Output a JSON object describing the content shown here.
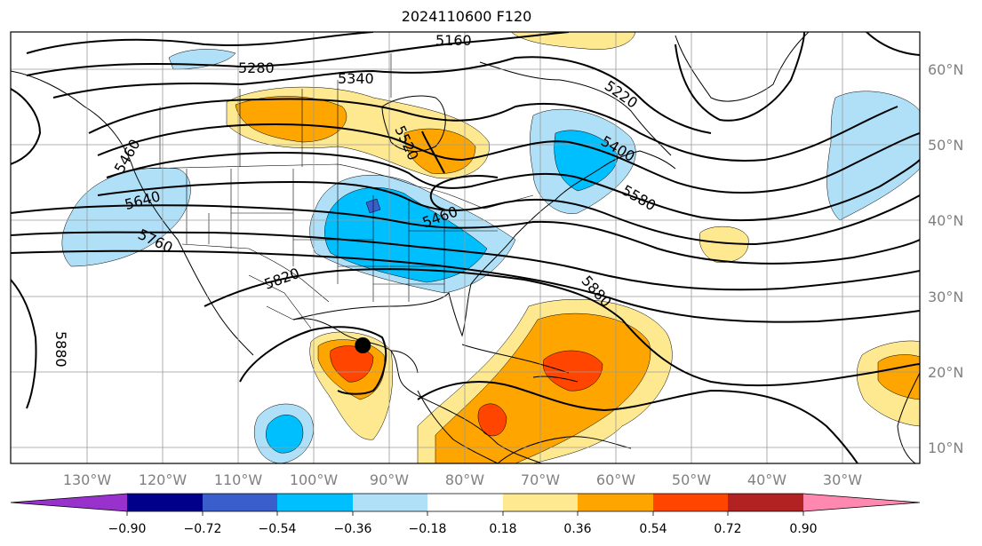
{
  "title": "2024110600 F120",
  "map": {
    "lon_labels": [
      "130°W",
      "120°W",
      "110°W",
      "100°W",
      "90°W",
      "80°W",
      "70°W",
      "60°W",
      "50°W",
      "40°W",
      "30°W"
    ],
    "lat_labels": [
      "60°N",
      "50°N",
      "40°N",
      "30°N",
      "20°N",
      "10°N"
    ],
    "contour_labels": [
      "5160",
      "5280",
      "5340",
      "5220",
      "5520",
      "5400",
      "5580",
      "5640",
      "5460",
      "5760",
      "5820",
      "5880",
      "5880",
      "5460"
    ],
    "marker": {
      "lon": -93.5,
      "lat": 23.5,
      "color": "#000000"
    }
  },
  "colorbar": {
    "tick_labels": [
      "−0.90",
      "−0.72",
      "−0.54",
      "−0.36",
      "−0.18",
      "0.18",
      "0.36",
      "0.54",
      "0.72",
      "0.90"
    ],
    "colors": [
      "#9932cc",
      "#00008b",
      "#3a5fcd",
      "#00bfff",
      "#b0e0f8",
      "#ffffff",
      "#ffe990",
      "#ffa500",
      "#ff4500",
      "#b22222",
      "#ff88b0"
    ]
  }
}
